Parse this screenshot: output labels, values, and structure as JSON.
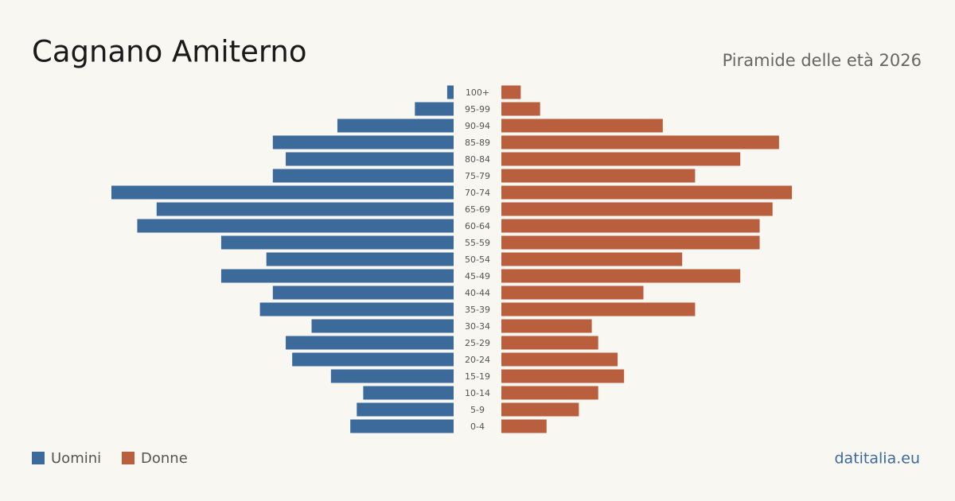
{
  "chart_data": {
    "type": "pyramid",
    "title": "Cagnano Amiterno",
    "subtitle": "Piramide delle età 2026",
    "site": "datitalia.eu",
    "categories": [
      "100+",
      "95-99",
      "90-94",
      "85-89",
      "80-84",
      "75-79",
      "70-74",
      "65-69",
      "60-64",
      "55-59",
      "50-54",
      "45-49",
      "40-44",
      "35-39",
      "30-34",
      "25-29",
      "20-24",
      "15-19",
      "10-14",
      "5-9",
      "0-4"
    ],
    "series": [
      {
        "name": "Uomini",
        "color": "#3b6a9b",
        "values": [
          1,
          6,
          18,
          28,
          26,
          28,
          53,
          46,
          49,
          36,
          29,
          36,
          28,
          30,
          22,
          26,
          25,
          19,
          14,
          15,
          16
        ]
      },
      {
        "name": "Donne",
        "color": "#b95f3d",
        "values": [
          3,
          6,
          25,
          43,
          37,
          30,
          45,
          42,
          40,
          40,
          28,
          37,
          22,
          30,
          14,
          15,
          18,
          19,
          15,
          12,
          7
        ]
      }
    ]
  }
}
